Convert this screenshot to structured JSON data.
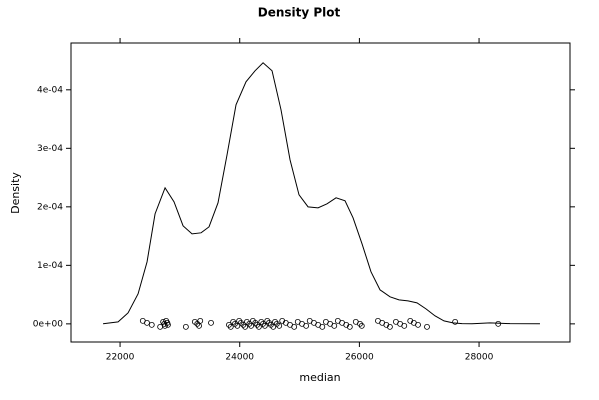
{
  "chart_data": {
    "type": "density",
    "title": "Density Plot",
    "xlabel": "median",
    "ylabel": "Density",
    "color": "#000000",
    "x": [
      21716,
      21967,
      22134,
      22301,
      22451,
      22585,
      22752,
      22902,
      23053,
      23203,
      23354,
      23487,
      23637,
      23788,
      23938,
      24105,
      24256,
      24390,
      24540,
      24690,
      24841,
      24991,
      25142,
      25309,
      25459,
      25610,
      25760,
      25894,
      26044,
      26194,
      26345,
      26512,
      26662,
      26813,
      26963,
      27113,
      27264,
      27414,
      27564,
      27715,
      27882,
      28183,
      28517,
      29018
    ],
    "values": [
      1e-07,
      3.4e-06,
      1.88e-05,
      5.13e-05,
      0.000106,
      0.000188,
      0.0002325,
      0.0002085,
      0.0001675,
      0.0001538,
      0.0001556,
      0.0001658,
      0.0002068,
      0.0002889,
      0.0003744,
      0.0004137,
      0.0004325,
      0.0004462,
      0.0004325,
      0.0003658,
      0.0002803,
      0.0002205,
      0.0002,
      0.0001983,
      0.0002051,
      0.0002154,
      0.0002103,
      0.0001812,
      0.0001368,
      8.89e-05,
      5.81e-05,
      4.62e-05,
      4.1e-05,
      3.93e-05,
      3.59e-05,
      2.56e-05,
      1.37e-05,
      5.1e-06,
      1.7e-06,
      5e-07,
      3e-07,
      1.7e-06,
      4e-07,
      1e-07
    ],
    "rug": [
      22380,
      22450,
      22530,
      22670,
      22720,
      22740,
      22750,
      22770,
      22790,
      22800,
      23100,
      23250,
      23290,
      23320,
      23340,
      23520,
      23820,
      23850,
      23890,
      23920,
      23960,
      23990,
      24020,
      24060,
      24090,
      24120,
      24160,
      24190,
      24220,
      24260,
      24290,
      24320,
      24360,
      24390,
      24420,
      24460,
      24490,
      24520,
      24560,
      24590,
      24620,
      24660,
      24710,
      24770,
      24840,
      24910,
      24970,
      25040,
      25110,
      25170,
      25240,
      25310,
      25380,
      25440,
      25510,
      25580,
      25640,
      25710,
      25780,
      25840,
      25940,
      26010,
      26040,
      26310,
      26380,
      26450,
      26510,
      26610,
      26680,
      26750,
      26850,
      26910,
      26980,
      27130,
      27600,
      28320
    ],
    "xlim": [
      21180,
      29520
    ],
    "xticks": [
      22000,
      24000,
      26000,
      28000
    ],
    "ylim": [
      -3.1e-05,
      0.00048
    ],
    "yticks": [
      {
        "value": 0,
        "label": "0e+00"
      },
      {
        "value": 0.0001,
        "label": "1e-04"
      },
      {
        "value": 0.0002,
        "label": "2e-04"
      },
      {
        "value": 0.0003,
        "label": "3e-04"
      },
      {
        "value": 0.0004,
        "label": "4e-04"
      }
    ]
  }
}
